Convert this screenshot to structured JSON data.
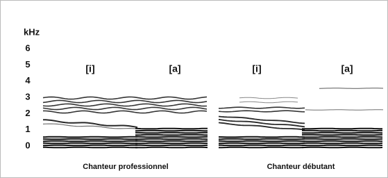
{
  "chart_data": {
    "type": "spectrogram",
    "ylabel": "kHz",
    "ylim": [
      0,
      6
    ],
    "yticks": [
      0,
      1,
      2,
      3,
      4,
      5,
      6
    ],
    "panels": [
      {
        "caption": "Chanteur professionnel",
        "labels": [
          "[i]",
          "[a]"
        ]
      },
      {
        "caption": "Chanteur débutant",
        "labels": [
          "[i]",
          "[a]"
        ]
      }
    ]
  }
}
